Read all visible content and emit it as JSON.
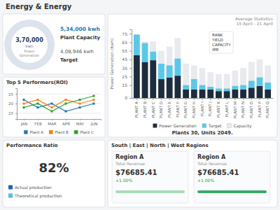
{
  "chart_data": [
    {
      "type": "bar",
      "title": "Energy & Energy",
      "subtitle": "Average Statistics\n15 April - 21 April",
      "xlabel": "Plants 30, Units 2049.",
      "ylabel": "Power Generation (Kwh)",
      "categories": [
        "PLANT A",
        "PLANT B",
        "PLANT C",
        "PLANT D",
        "PLANT E",
        "PLANT F",
        "PLANT G",
        "PLANT H",
        "PLANT I",
        "PLANT J",
        "PLANT K",
        "PLANT L",
        "PLANT M",
        "PLANT N",
        "PLANT O",
        "PLANT P",
        "PLANT Q"
      ],
      "series": [
        {
          "name": "Power Generation",
          "color": "#1e2d3d",
          "stacked": true,
          "values": [
            50,
            42,
            44,
            22,
            24,
            26,
            10,
            10,
            10,
            10,
            8,
            8,
            10,
            10,
            12,
            14,
            10
          ]
        },
        {
          "name": "Target",
          "color": "#5bc8e8",
          "stacked": true,
          "values": [
            24,
            22,
            10,
            18,
            14,
            20,
            5,
            12,
            5,
            3,
            3,
            3,
            4,
            5,
            8,
            10,
            8
          ]
        },
        {
          "name": "Capacity",
          "color": "#e8eaee",
          "values": [
            74,
            66,
            66,
            55,
            60,
            70,
            40,
            38,
            35,
            30,
            28,
            28,
            32,
            35,
            42,
            45,
            38
          ]
        }
      ],
      "ylim": [
        0,
        80
      ],
      "yticks": [
        0,
        15,
        25,
        35,
        45,
        55,
        65,
        75
      ],
      "annotations": [
        "RANK",
        "YIELD",
        "CAPACITY",
        "IRR"
      ],
      "legend": "bottom"
    },
    {
      "type": "kpi",
      "title": "Power\nGeneration",
      "annotations": [
        "3,70,000",
        "kwh",
        "5,34,000 kwh",
        "Plant Capacity",
        "4,08,946 kwh",
        "Target"
      ]
    },
    {
      "type": "line",
      "title": "Top 5 Performers(ROI)",
      "categories": [
        "JAN",
        "FEB",
        "MAR",
        "APR",
        "MAY",
        "JUN"
      ],
      "series": [
        {
          "name": "Plant A",
          "marker": "square",
          "values": [
            22,
            18,
            20,
            16,
            18,
            20
          ]
        },
        {
          "name": "Plant B",
          "marker": "square",
          "values": [
            20,
            22,
            18,
            22,
            20,
            22
          ]
        },
        {
          "name": "Plant C",
          "marker": "square",
          "values": [
            18,
            20,
            16,
            20,
            22,
            24
          ]
        }
      ],
      "ylim": [
        12,
        28
      ],
      "yticks": [
        15,
        20,
        25
      ],
      "grid": true,
      "legend": "bottom"
    },
    {
      "type": "kpi",
      "title": "Performance Ratio",
      "annotations": [
        "82%"
      ],
      "series": [
        {
          "name": "Actual production",
          "color": "#1565a8"
        },
        {
          "name": "Theoretical production",
          "color": "#4dc3e8"
        }
      ],
      "legend": "bottom"
    },
    {
      "type": "kpi",
      "title": "South | East | North | West Regions",
      "series": [
        {
          "name": "Region A",
          "color": "#a8ddb5"
        },
        {
          "name": "Region A",
          "color": "#3aaa6a"
        }
      ],
      "annotations": [
        "Total Revenue",
        "$76685.41",
        "+1.00%"
      ]
    }
  ]
}
